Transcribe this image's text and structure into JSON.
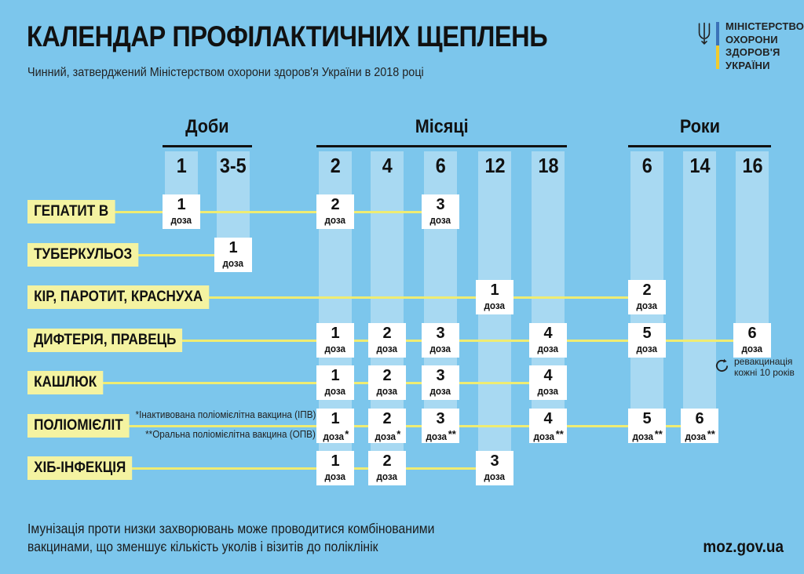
{
  "page": {
    "background": "#7CC6EC",
    "band_color": "#A8D9F2",
    "label_bg": "#F4F3A1",
    "line_color": "#EFEC72",
    "text_color": "#1b1b1b"
  },
  "header": {
    "title": "КАЛЕНДАР ПРОФІЛАКТИЧНИХ ЩЕПЛЕНЬ",
    "subtitle": "Чинний, затверджений Міністерством охорони здоров'я України в 2018 році"
  },
  "logo": {
    "icon": "tryzub-icon",
    "bar_blue": "#3B72B8",
    "bar_yellow": "#F2CB2D",
    "lines": [
      "МІНІСТЕРСТВО",
      "ОХОРОНИ",
      "ЗДОРОВ'Я",
      "УКРАЇНИ"
    ]
  },
  "chart_data": {
    "type": "table",
    "title": "КАЛЕНДАР ПРОФІЛАКТИЧНИХ ЩЕПЛЕНЬ",
    "groups": [
      {
        "label": "Доби",
        "columns": [
          {
            "id": "d1",
            "label": "1"
          },
          {
            "id": "d35",
            "label": "3-5"
          }
        ]
      },
      {
        "label": "Місяці",
        "columns": [
          {
            "id": "m2",
            "label": "2"
          },
          {
            "id": "m4",
            "label": "4"
          },
          {
            "id": "m6",
            "label": "6"
          },
          {
            "id": "m12",
            "label": "12"
          },
          {
            "id": "m18",
            "label": "18"
          }
        ]
      },
      {
        "label": "Роки",
        "columns": [
          {
            "id": "y6",
            "label": "6"
          },
          {
            "id": "y14",
            "label": "14"
          },
          {
            "id": "y16",
            "label": "16"
          }
        ]
      }
    ],
    "rows": [
      {
        "label": "ГЕПАТИТ В",
        "doses": [
          {
            "col": "d1",
            "n": "1",
            "u": "доза",
            "s": ""
          },
          {
            "col": "m2",
            "n": "2",
            "u": "доза",
            "s": ""
          },
          {
            "col": "m6",
            "n": "3",
            "u": "доза",
            "s": ""
          }
        ]
      },
      {
        "label": "ТУБЕРКУЛЬОЗ",
        "doses": [
          {
            "col": "d35",
            "n": "1",
            "u": "доза",
            "s": ""
          }
        ]
      },
      {
        "label": "КІР, ПАРОТИТ, КРАСНУХА",
        "doses": [
          {
            "col": "m12",
            "n": "1",
            "u": "доза",
            "s": ""
          },
          {
            "col": "y6",
            "n": "2",
            "u": "доза",
            "s": ""
          }
        ]
      },
      {
        "label": "ДИФТЕРІЯ, ПРАВЕЦЬ",
        "doses": [
          {
            "col": "m2",
            "n": "1",
            "u": "доза",
            "s": ""
          },
          {
            "col": "m4",
            "n": "2",
            "u": "доза",
            "s": ""
          },
          {
            "col": "m6",
            "n": "3",
            "u": "доза",
            "s": ""
          },
          {
            "col": "m18",
            "n": "4",
            "u": "доза",
            "s": ""
          },
          {
            "col": "y6",
            "n": "5",
            "u": "доза",
            "s": ""
          },
          {
            "col": "y16",
            "n": "6",
            "u": "доза",
            "s": ""
          }
        ]
      },
      {
        "label": "КАШЛЮК",
        "doses": [
          {
            "col": "m2",
            "n": "1",
            "u": "доза",
            "s": ""
          },
          {
            "col": "m4",
            "n": "2",
            "u": "доза",
            "s": ""
          },
          {
            "col": "m6",
            "n": "3",
            "u": "доза",
            "s": ""
          },
          {
            "col": "m18",
            "n": "4",
            "u": "доза",
            "s": ""
          }
        ]
      },
      {
        "label": "ПОЛІОМІЄЛІТ",
        "notes": [
          "*Інактивована поліомієлітна вакцина (ІПВ)",
          "**Оральна поліомієлітна вакцина (ОПВ)"
        ],
        "doses": [
          {
            "col": "m2",
            "n": "1",
            "u": "доза",
            "s": "*"
          },
          {
            "col": "m4",
            "n": "2",
            "u": "доза",
            "s": "*"
          },
          {
            "col": "m6",
            "n": "3",
            "u": "доза",
            "s": "**"
          },
          {
            "col": "m18",
            "n": "4",
            "u": "доза",
            "s": "**"
          },
          {
            "col": "y6",
            "n": "5",
            "u": "доза",
            "s": "**"
          },
          {
            "col": "y14",
            "n": "6",
            "u": "доза",
            "s": "**"
          }
        ]
      },
      {
        "label": "ХІБ-ІНФЕКЦІЯ",
        "doses": [
          {
            "col": "m2",
            "n": "1",
            "u": "доза",
            "s": ""
          },
          {
            "col": "m4",
            "n": "2",
            "u": "доза",
            "s": ""
          },
          {
            "col": "m12",
            "n": "3",
            "u": "доза",
            "s": ""
          }
        ]
      }
    ],
    "revaccination_note": {
      "icon": "refresh-icon",
      "lines": [
        "ревакцинація",
        "кожні 10 років"
      ]
    }
  },
  "footer": {
    "note_lines": [
      "Імунізація проти низки захворювань може проводитися комбінованими",
      "вакцинами, що зменшує кількість уколів і візитів до поліклінік"
    ],
    "site": "moz.gov.ua"
  }
}
